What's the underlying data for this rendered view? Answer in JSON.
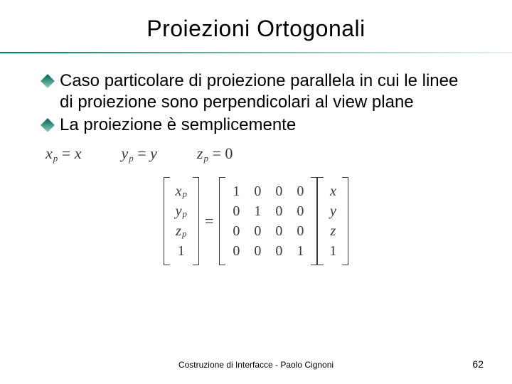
{
  "title": "Proiezioni Ortogonali",
  "divider_gradient": {
    "from": "#008060",
    "to": "#e6f4ef"
  },
  "bullet_diamond_gradient": {
    "from": "#006050",
    "to": "#8fd0c0"
  },
  "bullets": [
    "Caso particolare di proiezione parallela in cui le linee di proiezione sono perpendicolari al view plane",
    "La proiezione è semplicemente"
  ],
  "equations": {
    "xp": {
      "lhs_var": "x",
      "lhs_sub": "p",
      "rhs": "x"
    },
    "yp": {
      "lhs_var": "y",
      "lhs_sub": "p",
      "rhs": "y"
    },
    "zp": {
      "lhs_var": "z",
      "lhs_sub": "p",
      "rhs": "0"
    }
  },
  "matrix": {
    "result_vec": [
      "x_p",
      "y_p",
      "z_p",
      "1"
    ],
    "M": [
      [
        "1",
        "0",
        "0",
        "0"
      ],
      [
        "0",
        "1",
        "0",
        "0"
      ],
      [
        "0",
        "0",
        "0",
        "0"
      ],
      [
        "0",
        "0",
        "0",
        "1"
      ]
    ],
    "input_vec": [
      "x",
      "y",
      "z",
      "1"
    ]
  },
  "footer": "Costruzione di Interfacce - Paolo Cignoni",
  "page_number": "62"
}
